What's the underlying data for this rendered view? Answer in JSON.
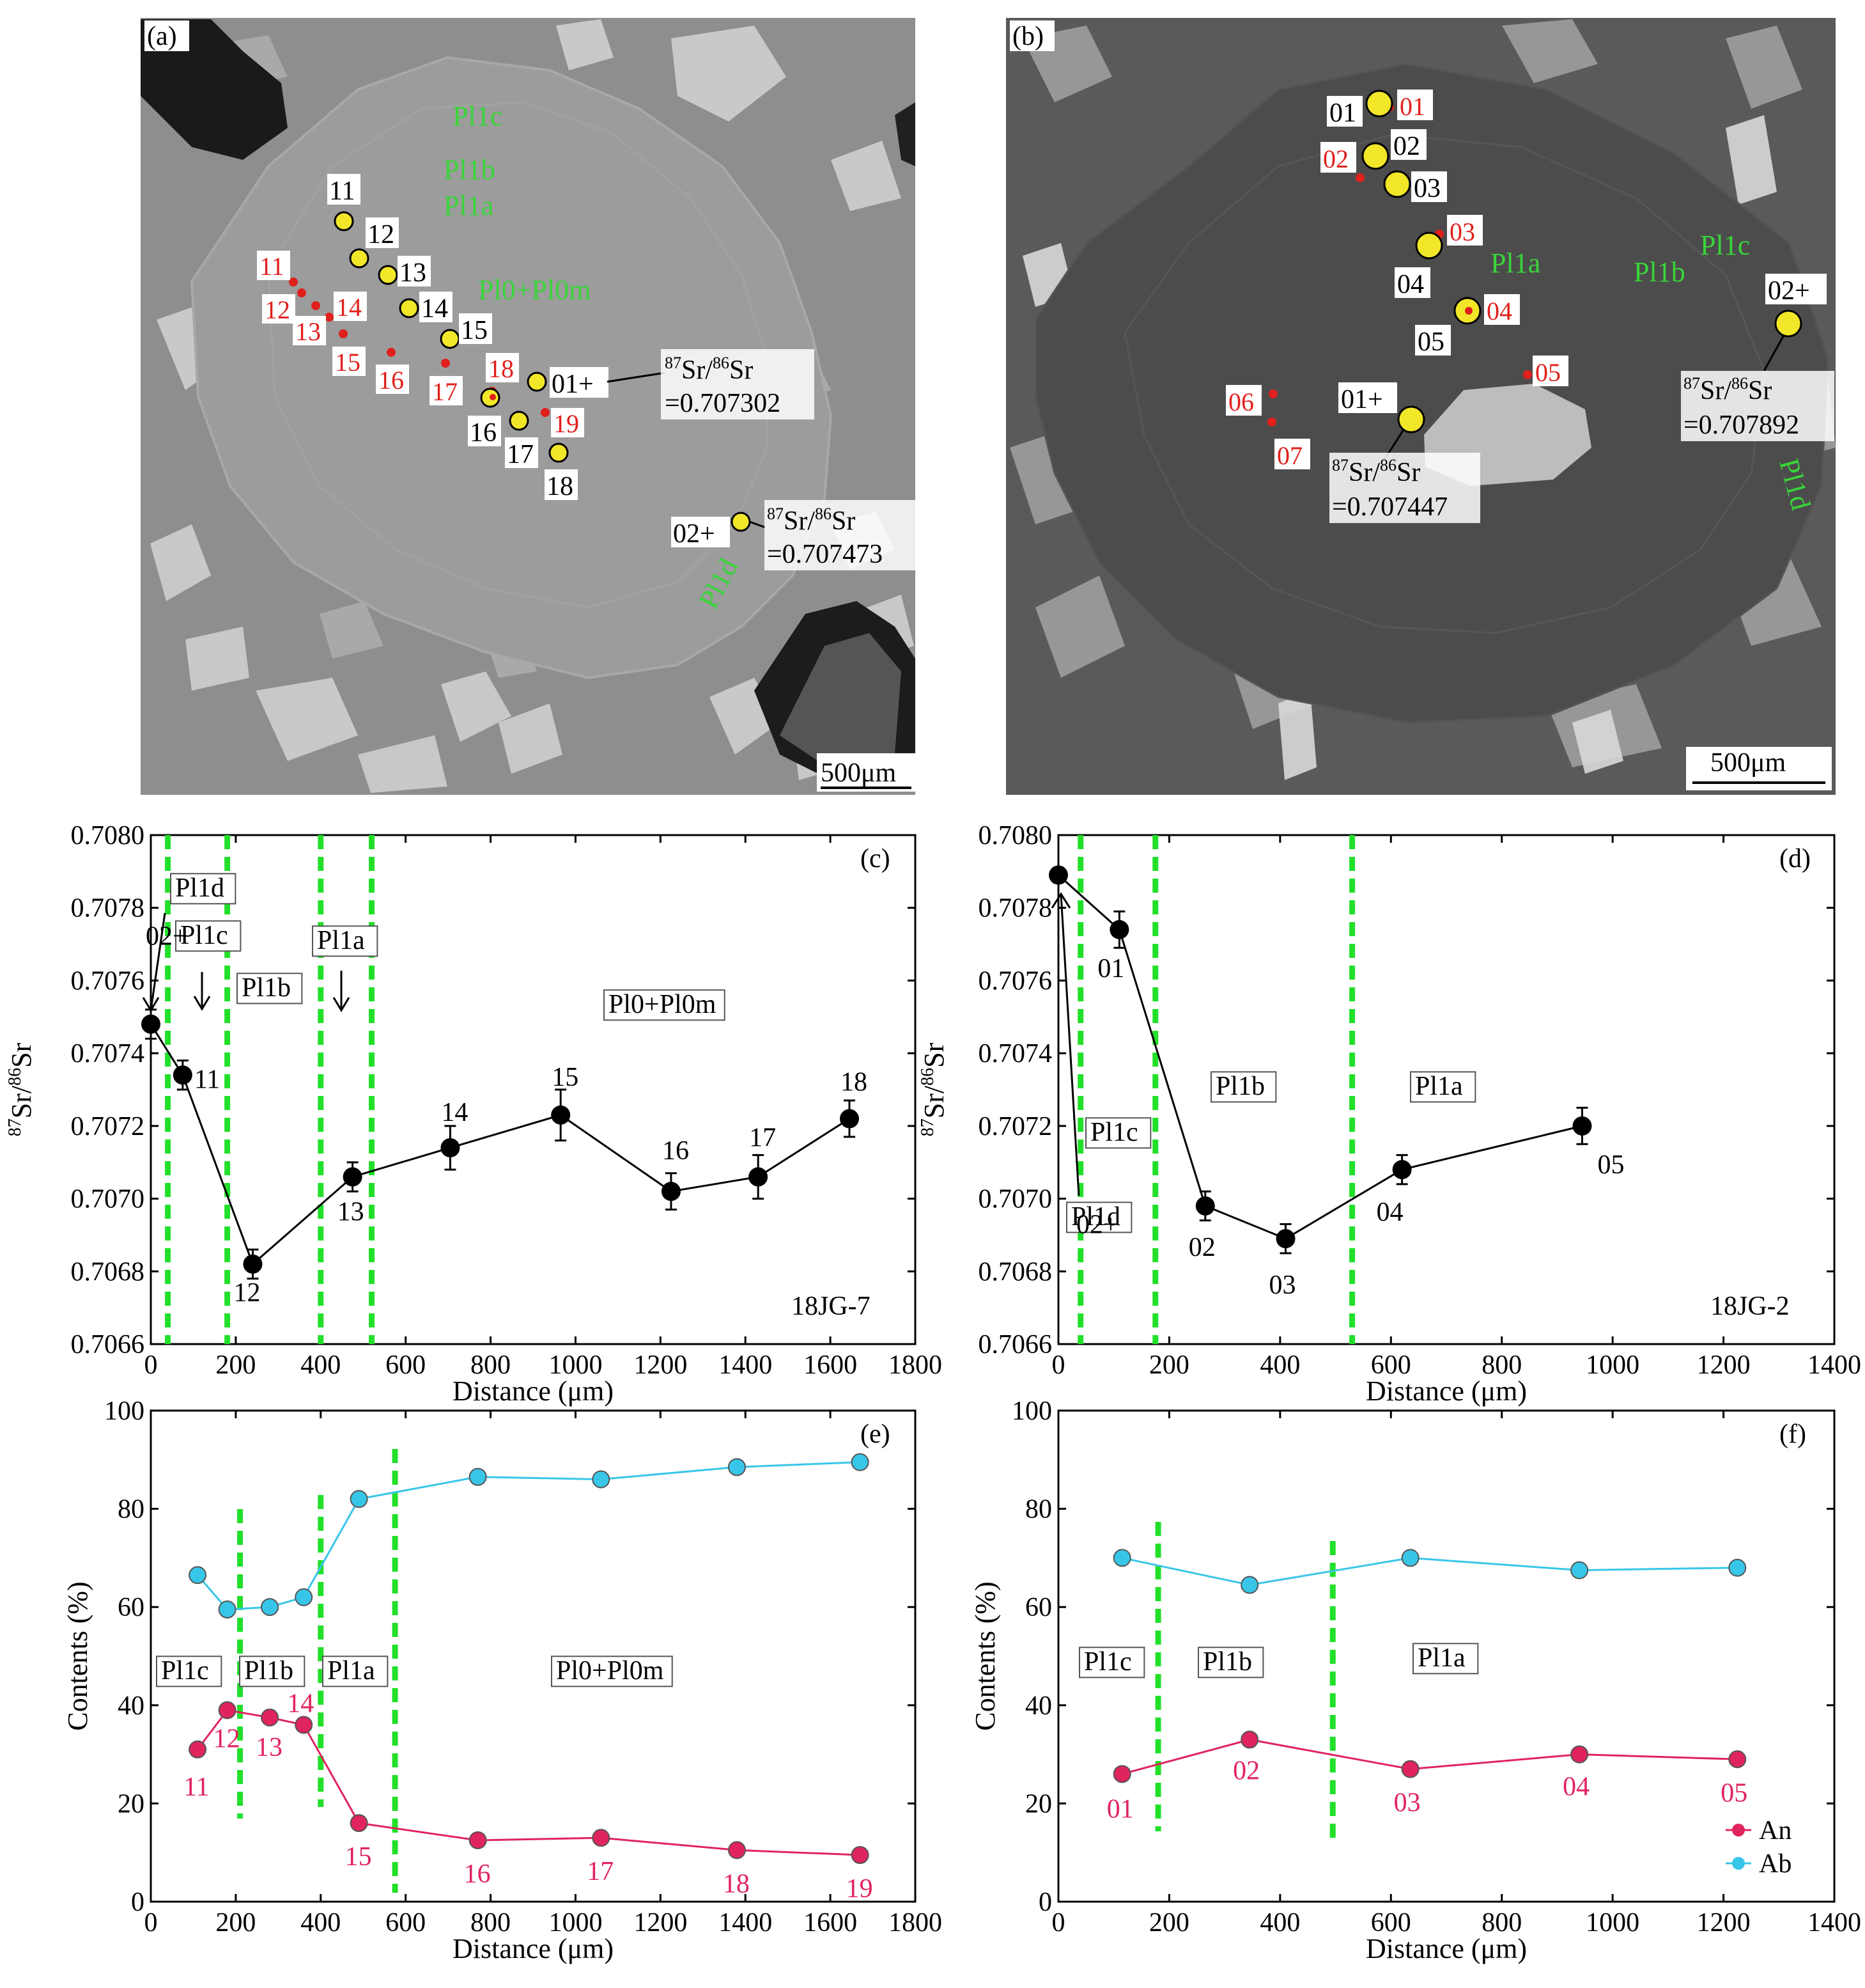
{
  "panel_a": {
    "label": "(a)",
    "zones": [
      "Pl1c",
      "Pl1b",
      "Pl1a",
      "Pl0+Pl0m",
      "Pl1d"
    ],
    "sr_spots": [
      "11",
      "12",
      "13",
      "14",
      "15",
      "16",
      "17",
      "18"
    ],
    "spot_01": "01+",
    "spot_02": "02+",
    "ep_spots": [
      "11",
      "12",
      "13",
      "14",
      "15",
      "16",
      "17",
      "18",
      "19"
    ],
    "sr_label": "87Sr/86Sr",
    "sr_01_value": "=0.707302",
    "sr_02_value": "=0.707473",
    "scale_bar": "500μm"
  },
  "panel_b": {
    "label": "(b)",
    "zones": [
      "Pl1c",
      "Pl1b",
      "Pl1a",
      "Pl1d"
    ],
    "sr_spots": [
      "01",
      "02",
      "03",
      "04",
      "05"
    ],
    "spot_01": "01+",
    "spot_02": "02+",
    "ep_spots": [
      "01",
      "02",
      "03",
      "04",
      "05",
      "06",
      "07"
    ],
    "sr_label": "87Sr/86Sr",
    "sr_01_value": "=0.707447",
    "sr_02_value": "=0.707892",
    "scale_bar": "500μm"
  },
  "colors": {
    "spot_fill": "#f2e629",
    "ep_dot": "#e0201c",
    "zone_text": "#39d43a",
    "boundary": "#22e02a",
    "an_line": "#e0245e",
    "ab_line": "#38c6e8",
    "sr_marker": "#000000"
  },
  "chart_data": [
    {
      "panel": "(c)",
      "type": "line",
      "sample": "18JG-7",
      "xlabel": "Distance (μm)",
      "ylabel": "87Sr/86Sr",
      "xlim": [
        0,
        1800
      ],
      "ylim": [
        0.7066,
        0.708
      ],
      "xticks": [
        "0",
        "200",
        "400",
        "600",
        "800",
        "1000",
        "1200",
        "1400",
        "1600",
        "1800"
      ],
      "yticks": [
        "0.7066",
        "0.7068",
        "0.7070",
        "0.7072",
        "0.7074",
        "0.7076",
        "0.7078",
        "0.7080"
      ],
      "points": [
        {
          "x": 0,
          "y": 0.70748,
          "err": 4e-05,
          "label": "02+"
        },
        {
          "x": 75,
          "y": 0.70734,
          "err": 4e-05,
          "label": "11"
        },
        {
          "x": 240,
          "y": 0.70682,
          "err": 4e-05,
          "label": "12"
        },
        {
          "x": 475,
          "y": 0.70706,
          "err": 4e-05,
          "label": "13"
        },
        {
          "x": 705,
          "y": 0.70714,
          "err": 6e-05,
          "label": "14"
        },
        {
          "x": 965,
          "y": 0.70723,
          "err": 7e-05,
          "label": "15"
        },
        {
          "x": 1225,
          "y": 0.70702,
          "err": 5e-05,
          "label": "16"
        },
        {
          "x": 1430,
          "y": 0.70706,
          "err": 6e-05,
          "label": "17"
        },
        {
          "x": 1645,
          "y": 0.70722,
          "err": 5e-05,
          "label": "18"
        }
      ],
      "boundaries": [
        40,
        180,
        400,
        520
      ],
      "zone_labels": [
        "Pl1d",
        "Pl1c",
        "Pl1b",
        "Pl1a",
        "Pl0+Pl0m"
      ],
      "panel_label": "(c)"
    },
    {
      "panel": "(d)",
      "type": "line",
      "sample": "18JG-2",
      "xlabel": "Distance (μm)",
      "ylabel": "87Sr/86Sr",
      "xlim": [
        0,
        1400
      ],
      "ylim": [
        0.7066,
        0.708
      ],
      "xticks": [
        "0",
        "200",
        "400",
        "600",
        "800",
        "1000",
        "1200",
        "1400"
      ],
      "yticks": [
        "0.7066",
        "0.7068",
        "0.7070",
        "0.7072",
        "0.7074",
        "0.7076",
        "0.7078",
        "0.7080"
      ],
      "points": [
        {
          "x": 0,
          "y": 0.70789,
          "err": 2e-05,
          "label": "02+"
        },
        {
          "x": 110,
          "y": 0.70774,
          "err": 5e-05,
          "label": "01"
        },
        {
          "x": 265,
          "y": 0.70698,
          "err": 4e-05,
          "label": "02"
        },
        {
          "x": 410,
          "y": 0.70689,
          "err": 4e-05,
          "label": "03"
        },
        {
          "x": 620,
          "y": 0.70708,
          "err": 4e-05,
          "label": "04"
        },
        {
          "x": 945,
          "y": 0.7072,
          "err": 5e-05,
          "label": "05"
        }
      ],
      "boundaries": [
        40,
        175,
        530
      ],
      "zone_labels": [
        "Pl1d",
        "Pl1c",
        "Pl1b",
        "Pl1a"
      ],
      "panel_label": "(d)"
    },
    {
      "panel": "(e)",
      "type": "line",
      "xlabel": "Distance (μm)",
      "ylabel": "Contents (%)",
      "xlim": [
        0,
        1800
      ],
      "ylim": [
        0,
        100
      ],
      "xticks": [
        "0",
        "200",
        "400",
        "600",
        "800",
        "1000",
        "1200",
        "1400",
        "1600",
        "1800"
      ],
      "yticks": [
        "0",
        "20",
        "40",
        "60",
        "80",
        "100"
      ],
      "x": [
        110,
        180,
        280,
        360,
        490,
        770,
        1060,
        1380,
        1670
      ],
      "series": [
        {
          "name": "An",
          "values": [
            31,
            39,
            37.5,
            36,
            16,
            12.5,
            13,
            10.5,
            9.5
          ]
        },
        {
          "name": "Ab",
          "values": [
            66.5,
            59.5,
            60,
            62,
            82,
            86.5,
            86,
            88.5,
            89.5
          ]
        }
      ],
      "point_labels": [
        "11",
        "12",
        "13",
        "14",
        "15",
        "16",
        "17",
        "18",
        "19"
      ],
      "boundaries": [
        210,
        400,
        575
      ],
      "zone_labels": [
        "Pl1c",
        "Pl1b",
        "Pl1a",
        "Pl0+Pl0m"
      ],
      "panel_label": "(e)"
    },
    {
      "panel": "(f)",
      "type": "line",
      "xlabel": "Distance (μm)",
      "ylabel": "Contents (%)",
      "xlim": [
        0,
        1400
      ],
      "ylim": [
        0,
        100
      ],
      "xticks": [
        "0",
        "200",
        "400",
        "600",
        "800",
        "1000",
        "1200",
        "1400"
      ],
      "yticks": [
        "0",
        "20",
        "40",
        "60",
        "80",
        "100"
      ],
      "x": [
        115,
        345,
        635,
        940,
        1225
      ],
      "series": [
        {
          "name": "An",
          "values": [
            26,
            33,
            27,
            30,
            29
          ]
        },
        {
          "name": "Ab",
          "values": [
            70,
            64.5,
            70,
            67.5,
            68
          ]
        }
      ],
      "point_labels": [
        "01",
        "02",
        "03",
        "04",
        "05"
      ],
      "boundaries": [
        180,
        495
      ],
      "zone_labels": [
        "Pl1c",
        "Pl1b",
        "Pl1a"
      ],
      "legend": [
        "An",
        "Ab"
      ],
      "panel_label": "(f)"
    }
  ]
}
